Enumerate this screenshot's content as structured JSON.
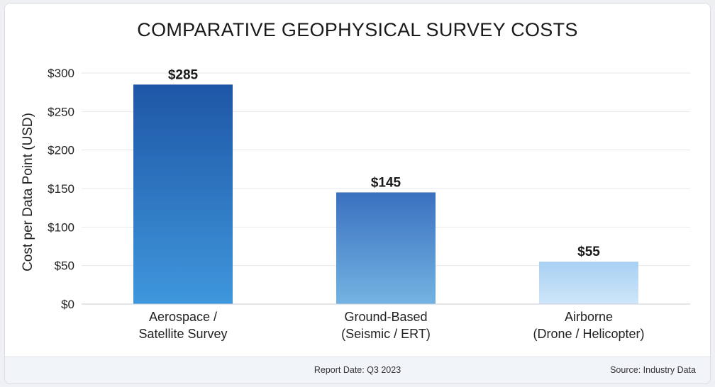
{
  "chart_data": {
    "type": "bar",
    "title": "COMPARATIVE GEOPHYSICAL SURVEY COSTS",
    "categories": [
      [
        "Aerospace /",
        "Satellite Survey"
      ],
      [
        "Ground-Based",
        "(Seismic / ERT)"
      ],
      [
        "Airborne",
        "(Drone / Helicopter)"
      ]
    ],
    "values": [
      285,
      145,
      55
    ],
    "data_labels": [
      "$285",
      "$145",
      "$55"
    ],
    "ylabel": "Cost per Data Point (USD)",
    "ylim": [
      0,
      300
    ],
    "yticks": [
      0,
      50,
      100,
      150,
      200,
      250,
      300
    ],
    "ytick_labels": [
      "$0",
      "$50",
      "$100",
      "$150",
      "$200",
      "$250",
      "$300"
    ],
    "grid": true,
    "bar_gradients": [
      [
        "#1e56a6",
        "#3f97dc"
      ],
      [
        "#3a71c0",
        "#74b3e2"
      ],
      [
        "#a8d0f2",
        "#cfe6fa"
      ]
    ]
  },
  "footer": {
    "report_date": "Report Date: Q3 2023",
    "source": "Source: Industry Data"
  }
}
